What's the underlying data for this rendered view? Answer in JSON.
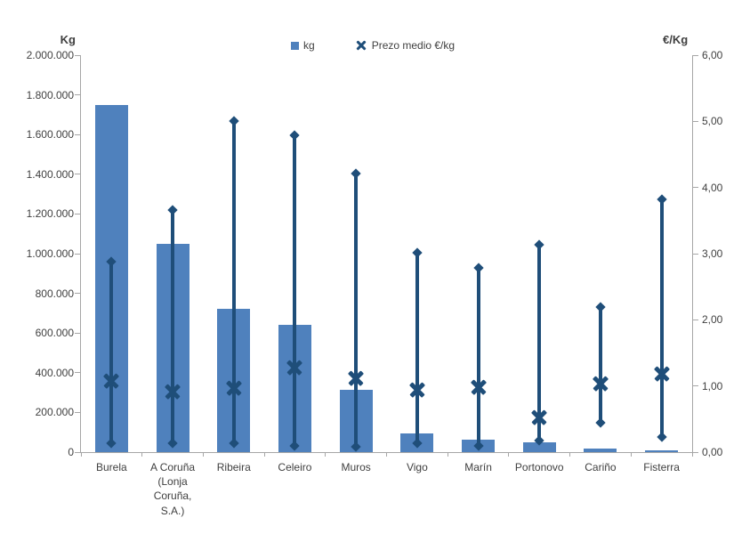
{
  "chart_data": {
    "type": "bar",
    "title": "",
    "categories": [
      "Burela",
      "A Coruña (Lonja Coruña, S.A.)",
      "Ribeira",
      "Celeiro",
      "Muros",
      "Vigo",
      "Marín",
      "Portonovo",
      "Cariño",
      "Fisterra"
    ],
    "series": [
      {
        "name": "kg",
        "type": "bar",
        "axis": "left",
        "color": "#4F81BD",
        "values": [
          1750000,
          1050000,
          720000,
          640000,
          315000,
          93000,
          64000,
          48000,
          16000,
          11000
        ]
      },
      {
        "name": "Prezo medio €/kg",
        "type": "high-low-mean",
        "axis": "right",
        "color": "#1F4E79",
        "mean": [
          1.08,
          0.91,
          0.97,
          1.28,
          1.12,
          0.94,
          0.98,
          0.52,
          1.03,
          1.18
        ],
        "max": [
          2.88,
          3.66,
          5.0,
          4.79,
          4.21,
          3.02,
          2.78,
          3.14,
          2.19,
          3.82
        ],
        "min": [
          0.13,
          0.13,
          0.14,
          0.09,
          0.08,
          0.14,
          0.09,
          0.17,
          0.45,
          0.23
        ]
      }
    ],
    "left_axis": {
      "title": "Kg",
      "min": 0,
      "max": 2000000,
      "tick_labels": [
        "2.000.000",
        "1.800.000",
        "1.600.000",
        "1.400.000",
        "1.200.000",
        "1.000.000",
        "800.000",
        "600.000",
        "400.000",
        "200.000",
        "0"
      ]
    },
    "right_axis": {
      "title": "€/Kg",
      "min": 0,
      "max": 6,
      "tick_labels": [
        "6,00",
        "5,00",
        "4,00",
        "3,00",
        "2,00",
        "1,00",
        "0,00"
      ]
    },
    "legend": [
      {
        "label": "kg",
        "marker": "square"
      },
      {
        "label": "Prezo medio €/kg",
        "marker": "x"
      }
    ],
    "grid": "off",
    "legend_position": "top-center"
  },
  "colors": {
    "bar_fill": "#4F81BD",
    "line_navy": "#1F4E79",
    "axis_gray": "#A6A6A6",
    "text": "#404040"
  }
}
